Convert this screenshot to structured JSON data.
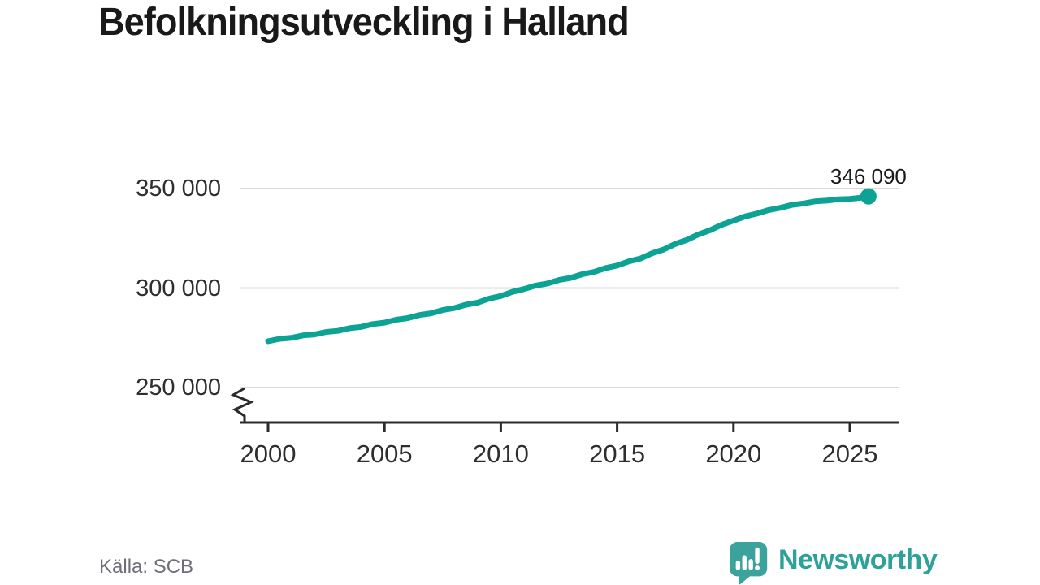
{
  "header": {
    "title": "Befolkningsutveckling i Halland"
  },
  "chart_data": {
    "type": "line",
    "title": "Befolkningsutveckling i Halland",
    "grid": "horizontal gridlines only",
    "legend": false,
    "axis_break_below": 250000,
    "ylim": [
      250000,
      350000
    ],
    "x_range_years": [
      2000,
      2026
    ],
    "y_ticks": [
      {
        "value": 350000,
        "label": "350 000"
      },
      {
        "value": 300000,
        "label": "300 000"
      },
      {
        "value": 250000,
        "label": "250 000"
      }
    ],
    "x_ticks": [
      {
        "value": 2000,
        "label": "2000"
      },
      {
        "value": 2005,
        "label": "2005"
      },
      {
        "value": 2010,
        "label": "2010"
      },
      {
        "value": 2015,
        "label": "2015"
      },
      {
        "value": 2020,
        "label": "2020"
      },
      {
        "value": 2025,
        "label": "2025"
      }
    ],
    "end_label": "346 090",
    "end_point": {
      "year": 2025.8,
      "value": 346090
    },
    "points": [
      [
        2000,
        273300
      ],
      [
        2000.5,
        274500
      ],
      [
        2001,
        275000
      ],
      [
        2001.5,
        276200
      ],
      [
        2002,
        276700
      ],
      [
        2002.5,
        277950
      ],
      [
        2003,
        278500
      ],
      [
        2003.5,
        279850
      ],
      [
        2004,
        280500
      ],
      [
        2004.5,
        281900
      ],
      [
        2005,
        282600
      ],
      [
        2005.5,
        284100
      ],
      [
        2006,
        284900
      ],
      [
        2006.5,
        286450
      ],
      [
        2007,
        287300
      ],
      [
        2007.5,
        288950
      ],
      [
        2008,
        289900
      ],
      [
        2008.5,
        291650
      ],
      [
        2009,
        292700
      ],
      [
        2009.5,
        294700
      ],
      [
        2010,
        296000
      ],
      [
        2010.5,
        298100
      ],
      [
        2011,
        299500
      ],
      [
        2011.5,
        301250
      ],
      [
        2012,
        302300
      ],
      [
        2012.5,
        304050
      ],
      [
        2013,
        305100
      ],
      [
        2013.5,
        306950
      ],
      [
        2014,
        308100
      ],
      [
        2014.5,
        310050
      ],
      [
        2015,
        311300
      ],
      [
        2015.5,
        313400
      ],
      [
        2016,
        314800
      ],
      [
        2016.5,
        317450
      ],
      [
        2017,
        319400
      ],
      [
        2017.5,
        322150
      ],
      [
        2018,
        324200
      ],
      [
        2018.5,
        327000
      ],
      [
        2019,
        329100
      ],
      [
        2019.5,
        331850
      ],
      [
        2020,
        333900
      ],
      [
        2020.5,
        336000
      ],
      [
        2021,
        337400
      ],
      [
        2021.5,
        339200
      ],
      [
        2022,
        340300
      ],
      [
        2022.5,
        341750
      ],
      [
        2023,
        342500
      ],
      [
        2023.5,
        343550
      ],
      [
        2024,
        343900
      ],
      [
        2024.5,
        344600
      ],
      [
        2025,
        344800
      ],
      [
        2025.4,
        345300
      ],
      [
        2025.8,
        346090
      ]
    ]
  },
  "footer": {
    "source": "Källa: SCB",
    "brand": "Newsworthy"
  },
  "colors": {
    "line": "#0ca294",
    "marker": "#0ca294",
    "grid": "#d9d9d9",
    "axis": "#2b2b2b",
    "tick_text": "#2e2e2e",
    "title_text": "#191919",
    "annotation_text": "#1a1a1a",
    "source_text": "#6e6e78",
    "logo_bubble": "#3ba39c",
    "logo_wordmark": "#2da19a",
    "logo_glyphs": "#ffffff"
  }
}
